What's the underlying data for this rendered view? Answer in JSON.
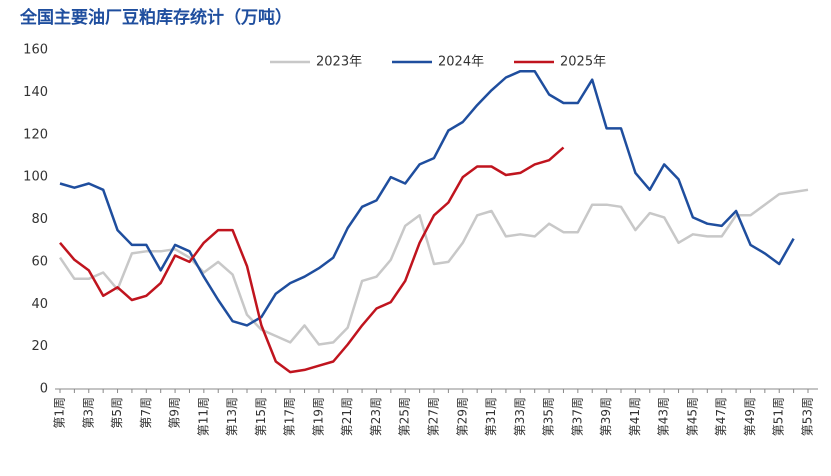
{
  "chart_data": {
    "type": "line",
    "title": "全国主要油厂豆粕库存统计（万吨）",
    "categories": [
      "第1周",
      null,
      "第3周",
      null,
      "第5周",
      null,
      "第7周",
      null,
      "第9周",
      null,
      "第11周",
      null,
      "第13周",
      null,
      "第15周",
      null,
      "第17周",
      null,
      "第19周",
      null,
      "第21周",
      null,
      "第23周",
      null,
      "第25周",
      null,
      "第27周",
      null,
      "第29周",
      null,
      "第31周",
      null,
      "第33周",
      null,
      "第35周",
      null,
      "第37周",
      null,
      "第39周",
      null,
      "第41周",
      null,
      "第43周",
      null,
      "第45周",
      null,
      "第47周",
      null,
      "第49周",
      null,
      "第51周",
      null,
      "第53周"
    ],
    "series": [
      {
        "name": "2023年",
        "color": "#c8c8c8",
        "values": [
          62,
          52,
          52,
          55,
          47,
          64,
          65,
          65,
          66,
          62,
          55,
          60,
          54,
          35,
          28,
          25,
          22,
          30,
          21,
          22,
          29,
          51,
          53,
          61,
          77,
          82,
          59,
          60,
          69,
          82,
          84,
          72,
          73,
          72,
          78,
          74,
          74,
          87,
          87,
          86,
          75,
          83,
          81,
          69,
          73,
          72,
          72,
          82,
          82,
          87,
          92,
          93,
          94
        ]
      },
      {
        "name": "2024年",
        "color": "#1f4e9e",
        "values": [
          97,
          95,
          97,
          94,
          75,
          68,
          68,
          56,
          68,
          65,
          53,
          42,
          32,
          30,
          34,
          45,
          50,
          53,
          57,
          62,
          76,
          86,
          89,
          100,
          97,
          106,
          109,
          122,
          126,
          134,
          141,
          147,
          150,
          150,
          139,
          135,
          135,
          146,
          123,
          123,
          102,
          94,
          106,
          99,
          81,
          78,
          77,
          84,
          68,
          64,
          59,
          71,
          null
        ]
      },
      {
        "name": "2025年",
        "color": "#c0141e",
        "values": [
          69,
          61,
          56,
          44,
          48,
          42,
          44,
          50,
          63,
          60,
          69,
          75,
          75,
          58,
          30,
          13,
          8,
          9,
          11,
          13,
          21,
          30,
          38,
          41,
          51,
          69,
          82,
          88,
          100,
          105,
          105,
          101,
          102,
          106,
          108,
          114,
          null,
          null,
          null,
          null,
          null,
          null,
          null,
          null,
          null,
          null,
          null,
          null,
          null,
          null,
          null,
          null,
          null
        ]
      }
    ],
    "ylim": [
      0,
      160
    ],
    "yticks": [
      0,
      20,
      40,
      60,
      80,
      100,
      120,
      140,
      160
    ],
    "legend": "top"
  }
}
